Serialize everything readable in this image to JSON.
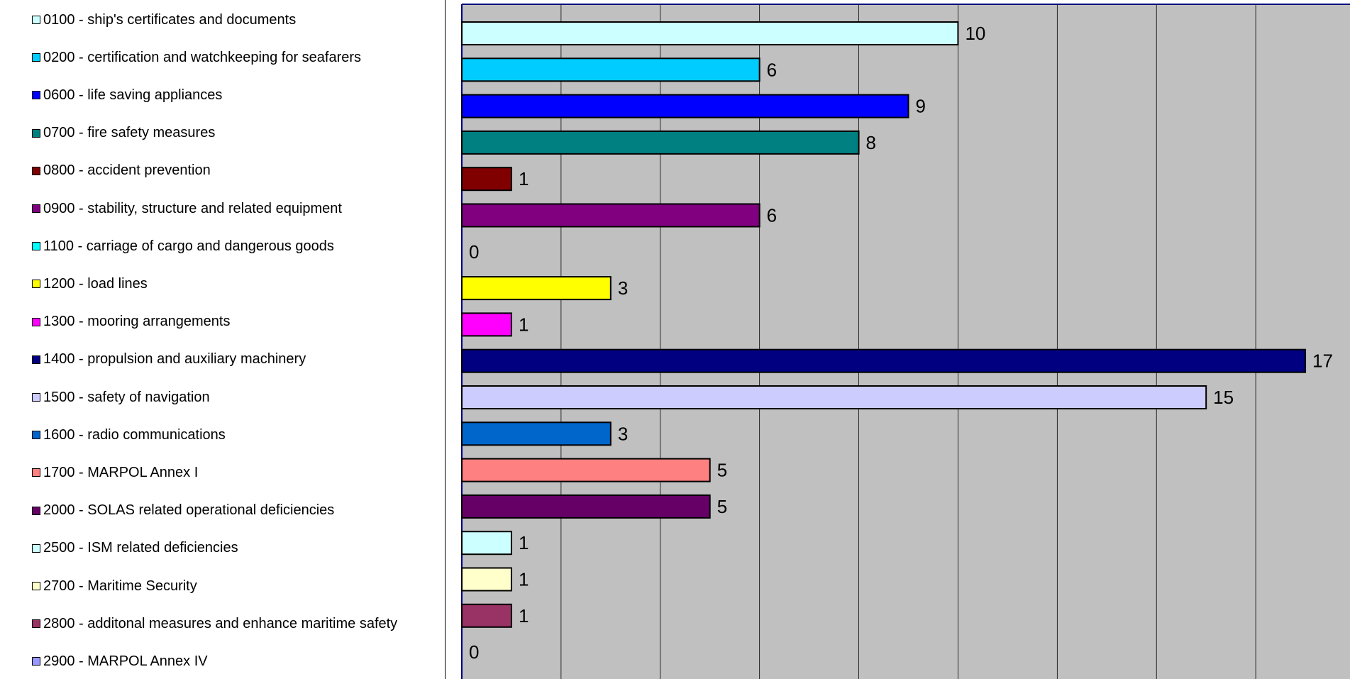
{
  "chart_data": {
    "type": "bar",
    "orientation": "horizontal",
    "categories": [
      "0100 - ship's certificates and documents",
      "0200 - certification and watchkeeping for seafarers",
      "0600 - life saving appliances",
      "0700 - fire safety measures",
      "0800 - accident prevention",
      "0900 - stability, structure and related equipment",
      "1100 - carriage of cargo and dangerous goods",
      "1200 - load lines",
      "1300 - mooring arrangements",
      "1400 - propulsion and auxiliary machinery",
      "1500 - safety of navigation",
      "1600 - radio communications",
      "1700 - MARPOL Annex I",
      "2000 - SOLAS related operational deficiencies",
      "2500 - ISM related deficiencies",
      "2700 - Maritime Security",
      "2800 - additonal measures and enhance maritime safety",
      "2900 - MARPOL Annex IV"
    ],
    "values": [
      10,
      6,
      9,
      8,
      1,
      6,
      0,
      3,
      1,
      17,
      15,
      3,
      5,
      5,
      1,
      1,
      1,
      0
    ],
    "data_labels": [
      "10",
      "6",
      "9",
      "8",
      "1",
      "6",
      "0",
      "3",
      "1",
      "17",
      "15",
      "3",
      "5",
      "5",
      "1",
      "1",
      "1",
      "0"
    ],
    "colors": [
      "#CCFFFF",
      "#00CCFF",
      "#0000FF",
      "#008080",
      "#800000",
      "#800080",
      "#00FFFF",
      "#FFFF00",
      "#FF00FF",
      "#000080",
      "#CCCCFF",
      "#0066CC",
      "#FF8080",
      "#660066",
      "#CCFFFF",
      "#FFFFCC",
      "#993366",
      "#9999FF"
    ],
    "xlim": [
      0,
      18
    ],
    "grid": true,
    "gridline_step": 2,
    "plot_background": "#C0C0C0",
    "legend_position": "left",
    "title": "",
    "xlabel": "",
    "ylabel": ""
  }
}
